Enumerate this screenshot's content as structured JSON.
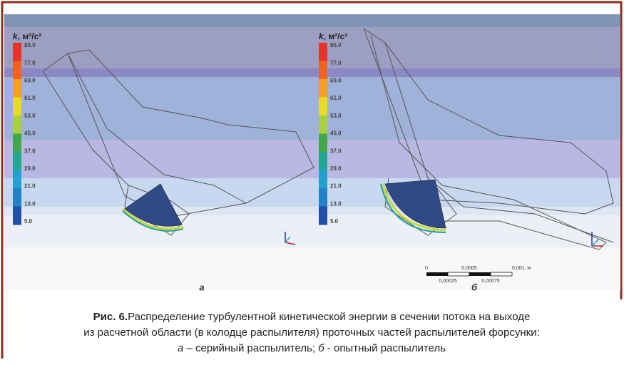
{
  "figure": {
    "panels": [
      {
        "label": "а",
        "legend_title": {
          "symbol": "k",
          "unit": ", м²/с²"
        },
        "legend_labels": [
          "85.0",
          "77.0",
          "69.0",
          "61.0",
          "53.0",
          "45.0",
          "37.0",
          "29.0",
          "21.0",
          "13.0",
          "5.0"
        ]
      },
      {
        "label": "б",
        "legend_title": {
          "symbol": "k",
          "unit": ", м²/с²"
        },
        "legend_labels": [
          "85.0",
          "77.0",
          "69.0",
          "61.0",
          "53.0",
          "45.0",
          "37.0",
          "29.0",
          "21.0",
          "13.0",
          "5.0"
        ],
        "scale_bar": {
          "top": [
            "0",
            "0,0005",
            "0,001, м"
          ],
          "bottom": [
            "0,00025",
            "0,00075"
          ]
        }
      }
    ],
    "caption": {
      "prefix": "Рис. 6.",
      "lines": [
        "Распределение турбулентной кинетической энергии в сечении потока на выходе",
        "из расчетной области (в колодце распылителя) проточных частей распылителей форсунки:"
      ],
      "legend_line": {
        "a": "а",
        "a_text": " – серийный распылитель; ",
        "b": "б",
        "b_text": " - опытный распылитель"
      }
    }
  }
}
